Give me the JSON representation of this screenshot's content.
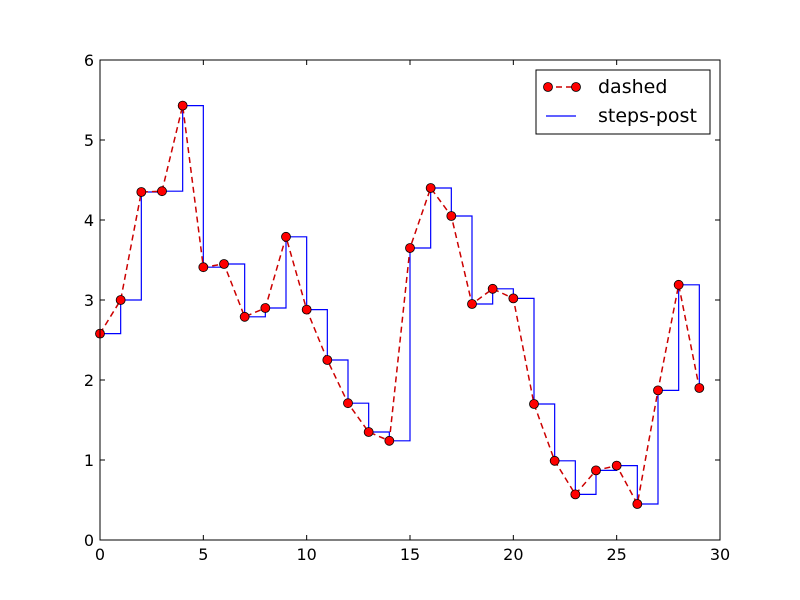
{
  "chart_data": {
    "type": "line",
    "title": "",
    "xlabel": "",
    "ylabel": "",
    "xlim": [
      0,
      30
    ],
    "ylim": [
      0,
      6
    ],
    "xticks": [
      0,
      5,
      10,
      15,
      20,
      25,
      30
    ],
    "yticks": [
      0,
      1,
      2,
      3,
      4,
      5,
      6
    ],
    "xtick_labels": [
      "0",
      "5",
      "10",
      "15",
      "20",
      "25",
      "30"
    ],
    "ytick_labels": [
      "0",
      "1",
      "2",
      "3",
      "4",
      "5",
      "6"
    ],
    "grid": false,
    "legend_position": "top-right",
    "x": [
      0,
      1,
      2,
      3,
      4,
      5,
      6,
      7,
      8,
      9,
      10,
      11,
      12,
      13,
      14,
      15,
      16,
      17,
      18,
      19,
      20,
      21,
      22,
      23,
      24,
      25,
      26,
      27,
      28,
      29
    ],
    "series": [
      {
        "name": "dashed",
        "style": "dashed-with-markers",
        "line_color": "#cc0000",
        "marker_color": "#ff0000",
        "values": [
          2.58,
          3.0,
          4.35,
          4.36,
          5.43,
          3.41,
          3.45,
          2.79,
          2.9,
          3.79,
          2.88,
          2.25,
          1.71,
          1.35,
          1.24,
          3.65,
          4.4,
          4.05,
          2.95,
          3.14,
          3.02,
          1.7,
          0.99,
          0.57,
          0.87,
          0.93,
          0.45,
          1.87,
          3.19,
          1.9
        ]
      },
      {
        "name": "steps-post",
        "style": "steps-post",
        "line_color": "#0000ff",
        "values": [
          2.58,
          3.0,
          4.35,
          4.36,
          5.43,
          3.41,
          3.45,
          2.79,
          2.9,
          3.79,
          2.88,
          2.25,
          1.71,
          1.35,
          1.24,
          3.65,
          4.4,
          4.05,
          2.95,
          3.14,
          3.02,
          1.7,
          0.99,
          0.57,
          0.87,
          0.93,
          0.45,
          1.87,
          3.19,
          1.9
        ]
      }
    ]
  }
}
